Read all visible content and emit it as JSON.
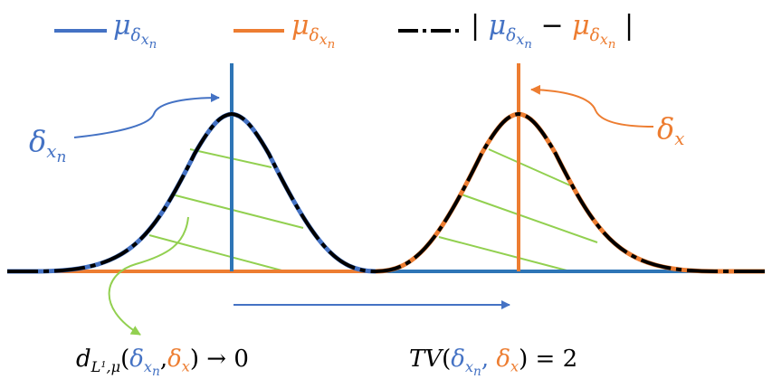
{
  "colors": {
    "blue": "#4472C4",
    "blue_spike": "#2E75B6",
    "orange": "#ED7D31",
    "green": "#92D050",
    "black": "#000000"
  },
  "legend": {
    "blue_sym": "μ",
    "blue_sub": "δ",
    "blue_subsub": "x",
    "blue_subsubsub": "n",
    "orange_sym": "μ",
    "orange_sub": "δ",
    "orange_subsub": "x",
    "orange_subsubsub": "n",
    "diff_bar_left": "|",
    "diff_a_sym": "μ",
    "diff_a_sub": "δ",
    "diff_a_subsub": "x",
    "diff_a_subsubsub": "n",
    "diff_minus": "−",
    "diff_b_sym": "μ",
    "diff_b_sub": "δ",
    "diff_b_subsub": "x",
    "diff_b_subsubsub": "n",
    "diff_bar_right": "|"
  },
  "labels": {
    "delta_xn_sym": "δ",
    "delta_xn_sub": "x",
    "delta_xn_subsub": "n",
    "delta_x_sym": "δ",
    "delta_x_sub": "x"
  },
  "formulas": {
    "d_sym": "d",
    "d_sub_L": "L",
    "d_sup_1": "1",
    "d_sub_mu": ",μ",
    "d_open": "(",
    "d_delta1": "δ",
    "d_delta1_sub": "x",
    "d_delta1_subsub": "n",
    "d_comma": ",",
    "d_delta2": "δ",
    "d_delta2_sub": "x",
    "d_close": ")",
    "d_arrow": " → 0",
    "tv_name": "TV",
    "tv_open": "(",
    "tv_delta1": "δ",
    "tv_delta1_sub": "x",
    "tv_delta1_subsub": "n",
    "tv_comma": ", ",
    "tv_delta2": "δ",
    "tv_delta2_sub": "x",
    "tv_close": ")",
    "tv_eq": " = 2"
  }
}
